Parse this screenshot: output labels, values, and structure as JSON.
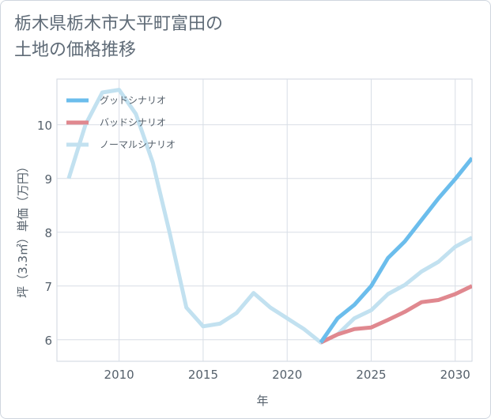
{
  "title_lines": [
    "栃木県栃木市大平町富田の",
    "土地の価格推移"
  ],
  "chart_data": {
    "type": "line",
    "xlabel": "年",
    "ylabel": "坪（3.3㎡）単価（万円）",
    "xlim": [
      2006.3,
      2031
    ],
    "ylim": [
      5.6,
      10.85
    ],
    "xticks": [
      2010,
      2015,
      2020,
      2025,
      2030
    ],
    "yticks": [
      6,
      7,
      8,
      9,
      10
    ],
    "grid": true,
    "legend_position": "top-left",
    "series": [
      {
        "name": "ノーマルシナリオ",
        "color": "#c2e1f0",
        "points": [
          [
            2007,
            9.0
          ],
          [
            2008,
            10.0
          ],
          [
            2009,
            10.6
          ],
          [
            2010,
            10.65
          ],
          [
            2011,
            10.2
          ],
          [
            2012,
            9.3
          ],
          [
            2013,
            8.0
          ],
          [
            2014,
            6.6
          ],
          [
            2015,
            6.25
          ],
          [
            2016,
            6.3
          ],
          [
            2017,
            6.5
          ],
          [
            2018,
            6.87
          ],
          [
            2019,
            6.6
          ],
          [
            2020,
            6.4
          ],
          [
            2021,
            6.2
          ],
          [
            2022,
            5.95
          ],
          [
            2023,
            6.1
          ],
          [
            2024,
            6.4
          ],
          [
            2025,
            6.55
          ],
          [
            2026,
            6.85
          ],
          [
            2027,
            7.02
          ],
          [
            2028,
            7.27
          ],
          [
            2029,
            7.45
          ],
          [
            2030,
            7.73
          ],
          [
            2031,
            7.9
          ]
        ]
      },
      {
        "name": "バッドシナリオ",
        "color": "#e0888f",
        "points": [
          [
            2022,
            5.95
          ],
          [
            2023,
            6.1
          ],
          [
            2024,
            6.2
          ],
          [
            2025,
            6.23
          ],
          [
            2026,
            6.37
          ],
          [
            2027,
            6.52
          ],
          [
            2028,
            6.7
          ],
          [
            2029,
            6.74
          ],
          [
            2030,
            6.85
          ],
          [
            2031,
            7.0
          ]
        ]
      },
      {
        "name": "グッドシナリオ",
        "color": "#6bbdec",
        "points": [
          [
            2022,
            5.95
          ],
          [
            2023,
            6.4
          ],
          [
            2024,
            6.65
          ],
          [
            2025,
            7.0
          ],
          [
            2026,
            7.52
          ],
          [
            2027,
            7.83
          ],
          [
            2028,
            8.23
          ],
          [
            2029,
            8.63
          ],
          [
            2030,
            8.99
          ],
          [
            2031,
            9.38
          ]
        ]
      }
    ],
    "legend_order": [
      "グッドシナリオ",
      "バッドシナリオ",
      "ノーマルシナリオ"
    ]
  }
}
